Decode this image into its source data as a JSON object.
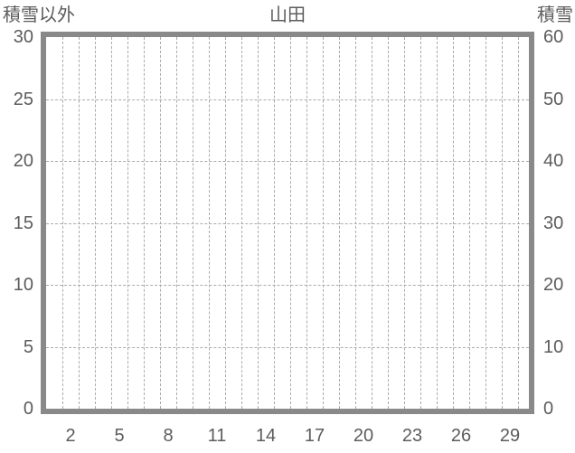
{
  "chart": {
    "title": "山田",
    "left_axis_label": "積雪以外",
    "right_axis_label": "積雪"
  },
  "chart_data": {
    "type": "line",
    "title": "山田",
    "subtitle": "",
    "series": [],
    "x": [],
    "left_axis": {
      "label": "積雪以外",
      "min": 0,
      "max": 30,
      "tick_step": 5,
      "ticks": [
        30,
        25,
        20,
        15,
        10,
        5,
        0
      ]
    },
    "right_axis": {
      "label": "積雪",
      "min": 0,
      "max": 60,
      "tick_step": 10,
      "ticks": [
        60,
        50,
        40,
        30,
        20,
        10,
        0
      ]
    },
    "x_axis": {
      "label": "",
      "tick_labels": [
        2,
        5,
        8,
        11,
        14,
        17,
        20,
        23,
        26,
        29
      ],
      "cells": 30,
      "unit": "day-of-month"
    },
    "grid": {
      "vertical": "dashed, one line per day boundary",
      "horizontal": "dashed, every 5 (left axis) / 10 (right axis)",
      "on": true
    },
    "legend": "none",
    "plot_empty": true,
    "colors": {
      "background": "#ffffff",
      "plot_border": "#898989",
      "gridline": "#ababab",
      "text": "#5c5c5c"
    }
  }
}
